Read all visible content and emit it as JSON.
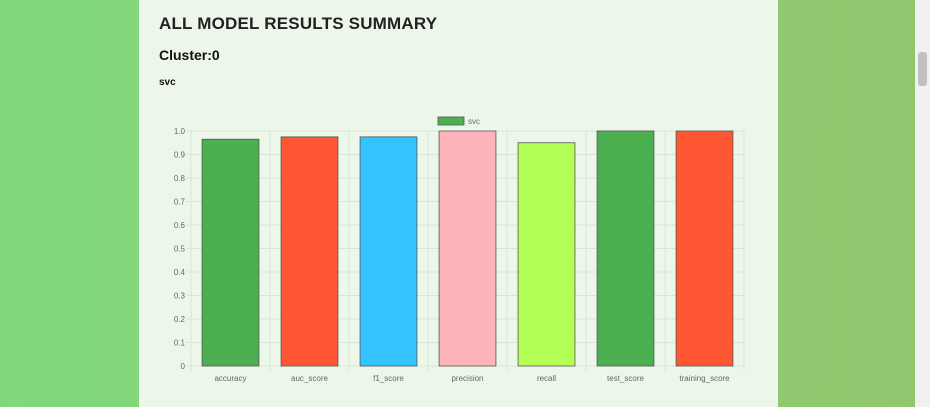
{
  "header": {
    "title": "ALL MODEL RESULTS SUMMARY",
    "cluster_label": "Cluster:0",
    "model_name": "svc"
  },
  "chart_data": {
    "type": "bar",
    "categories": [
      "accuracy",
      "auc_score",
      "f1_score",
      "precision",
      "recall",
      "test_score",
      "training_score"
    ],
    "series": [
      {
        "name": "svc",
        "values": [
          0.965,
          0.975,
          0.975,
          1.0,
          0.95,
          1.0,
          1.0
        ],
        "colors": [
          "#4caf50",
          "#ff5733",
          "#33c4ff",
          "#ffb3ba",
          "#b3ff55",
          "#4caf50",
          "#ff5733"
        ]
      }
    ],
    "legend_color": "#4caf50",
    "legend_position": "top-center",
    "ylim": [
      0,
      1.0
    ],
    "yticks": [
      "0",
      "0.1",
      "0.2",
      "0.3",
      "0.4",
      "0.5",
      "0.6",
      "0.7",
      "0.8",
      "0.9",
      "1.0"
    ],
    "grid": true
  }
}
